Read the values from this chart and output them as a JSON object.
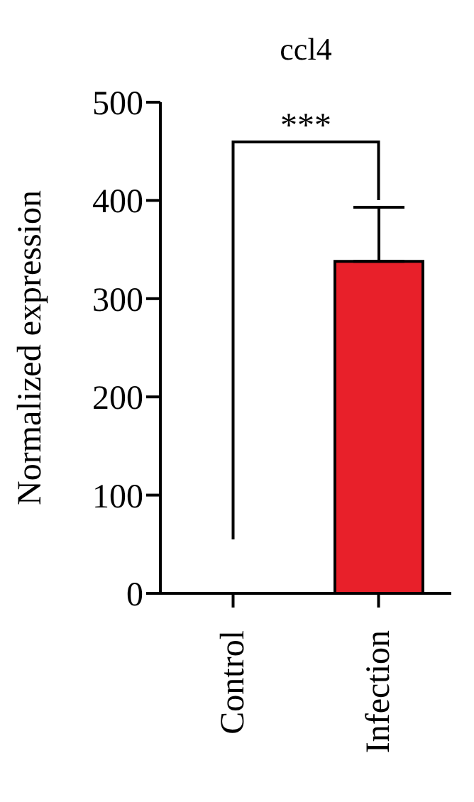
{
  "chart_data": {
    "type": "bar",
    "title": "ccl4",
    "ylabel": "Normalized expression",
    "categories": [
      "Control",
      "Infection"
    ],
    "values": [
      0,
      338
    ],
    "colors": [
      "#e8202a",
      "#e8202a"
    ],
    "errors": [
      null,
      [
        338,
        393
      ]
    ],
    "ylim": [
      0,
      500
    ],
    "yticks": [
      0,
      100,
      200,
      300,
      400,
      500
    ],
    "grid": false,
    "legend": false,
    "annotations": [
      "***"
    ]
  }
}
